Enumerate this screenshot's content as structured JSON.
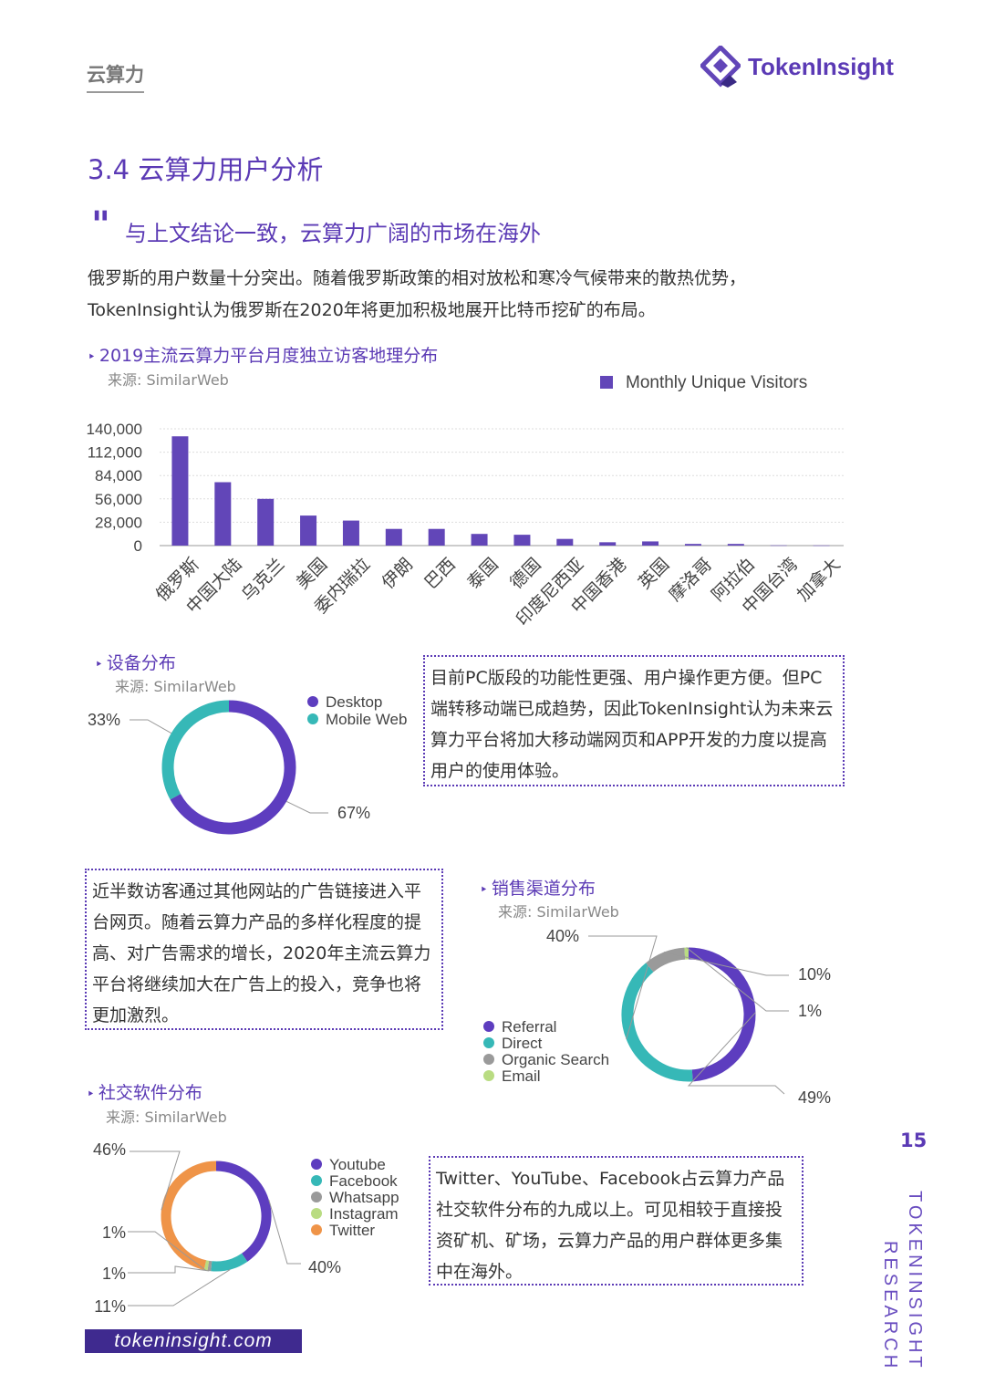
{
  "header": {
    "section": "云算力",
    "brand": "TokenInsight"
  },
  "section_title": "3.4 云算力用户分析",
  "subtitle": "与上文结论一致，云算力广阔的市场在海外",
  "intro": "俄罗斯的用户数量十分突出。随着俄罗斯政策的相对放松和寒冷气候带来的散热优势，TokenInsight认为俄罗斯在2020年将更加积极地展开比特币挖矿的布局。",
  "geo": {
    "title": "2019主流云算力平台月度独立访客地理分布",
    "source": "来源: SimilarWeb"
  },
  "device": {
    "title": "设备分布",
    "source": "来源: SimilarWeb",
    "note": "目前PC版段的功能性更强、用户操作更方便。但PC端转移动端已成趋势，因此TokenInsight认为未来云算力平台将加大移动端网页和APP开发的力度以提高用户的使用体验。"
  },
  "channel": {
    "title": "销售渠道分布",
    "source": "来源: SimilarWeb",
    "note": "近半数访客通过其他网站的广告链接进入平台网页。随着云算力产品的多样化程度的提高、对广告需求的增长，2020年主流云算力平台将继续加大在广告上的投入，竞争也将更加激烈。"
  },
  "social": {
    "title": "社交软件分布",
    "source": "来源: SimilarWeb",
    "note": "Twitter、YouTube、Facebook占云算力产品社交软件分布的九成以上。可见相较于直接投资矿机、矿场，云算力产品的用户群体更多集中在海外。"
  },
  "footer": {
    "url": "tokeninsight.com",
    "page_number": "15",
    "vertical_brand": "TOKENINSIGHT",
    "vertical_sub": "RESEARCH"
  },
  "chart_data": [
    {
      "type": "bar",
      "categories": [
        "俄罗斯",
        "中国大陆",
        "乌克兰",
        "美国",
        "委内瑞拉",
        "伊朗",
        "巴西",
        "泰国",
        "德国",
        "印度尼西亚",
        "中国香港",
        "英国",
        "摩洛哥",
        "阿拉伯",
        "中国台湾",
        "加拿大"
      ],
      "series": [
        {
          "name": "Monthly Unique Visitors",
          "values": [
            131000,
            76000,
            56000,
            36000,
            30000,
            20000,
            20000,
            14000,
            13000,
            8000,
            4000,
            5000,
            2000,
            2000,
            300,
            200
          ]
        }
      ],
      "ylim": [
        0,
        140000
      ],
      "yticks": [
        "140,000",
        "112,000",
        "84,000",
        "56,000",
        "28,000",
        "0"
      ],
      "legend": "top-right",
      "grid": true,
      "colors": {
        "bar": "#6246b8"
      }
    },
    {
      "type": "pie",
      "labels": [
        "Desktop",
        "Mobile Web"
      ],
      "values": [
        67,
        33
      ],
      "value_labels": [
        "67%",
        "33%"
      ],
      "colors": [
        "#5d3dbf",
        "#36b8b7"
      ]
    },
    {
      "type": "pie",
      "labels": [
        "Referral",
        "Direct",
        "Organic Search",
        "Email"
      ],
      "values": [
        49,
        40,
        10,
        1
      ],
      "value_labels": [
        "49%",
        "40%",
        "10%",
        "1%"
      ],
      "colors": [
        "#5d3dbf",
        "#36b8b7",
        "#9a9a9a",
        "#b9dc82"
      ]
    },
    {
      "type": "pie",
      "labels": [
        "Youtube",
        "Facebook",
        "Whatsapp",
        "Instagram",
        "Twitter"
      ],
      "values": [
        40,
        11,
        1,
        1,
        46
      ],
      "value_labels": [
        "40%",
        "11%",
        "1%",
        "1%",
        "46%"
      ],
      "colors": [
        "#5d3dbf",
        "#36b8b7",
        "#9a9a9a",
        "#b9dc82",
        "#ef9448"
      ]
    }
  ]
}
